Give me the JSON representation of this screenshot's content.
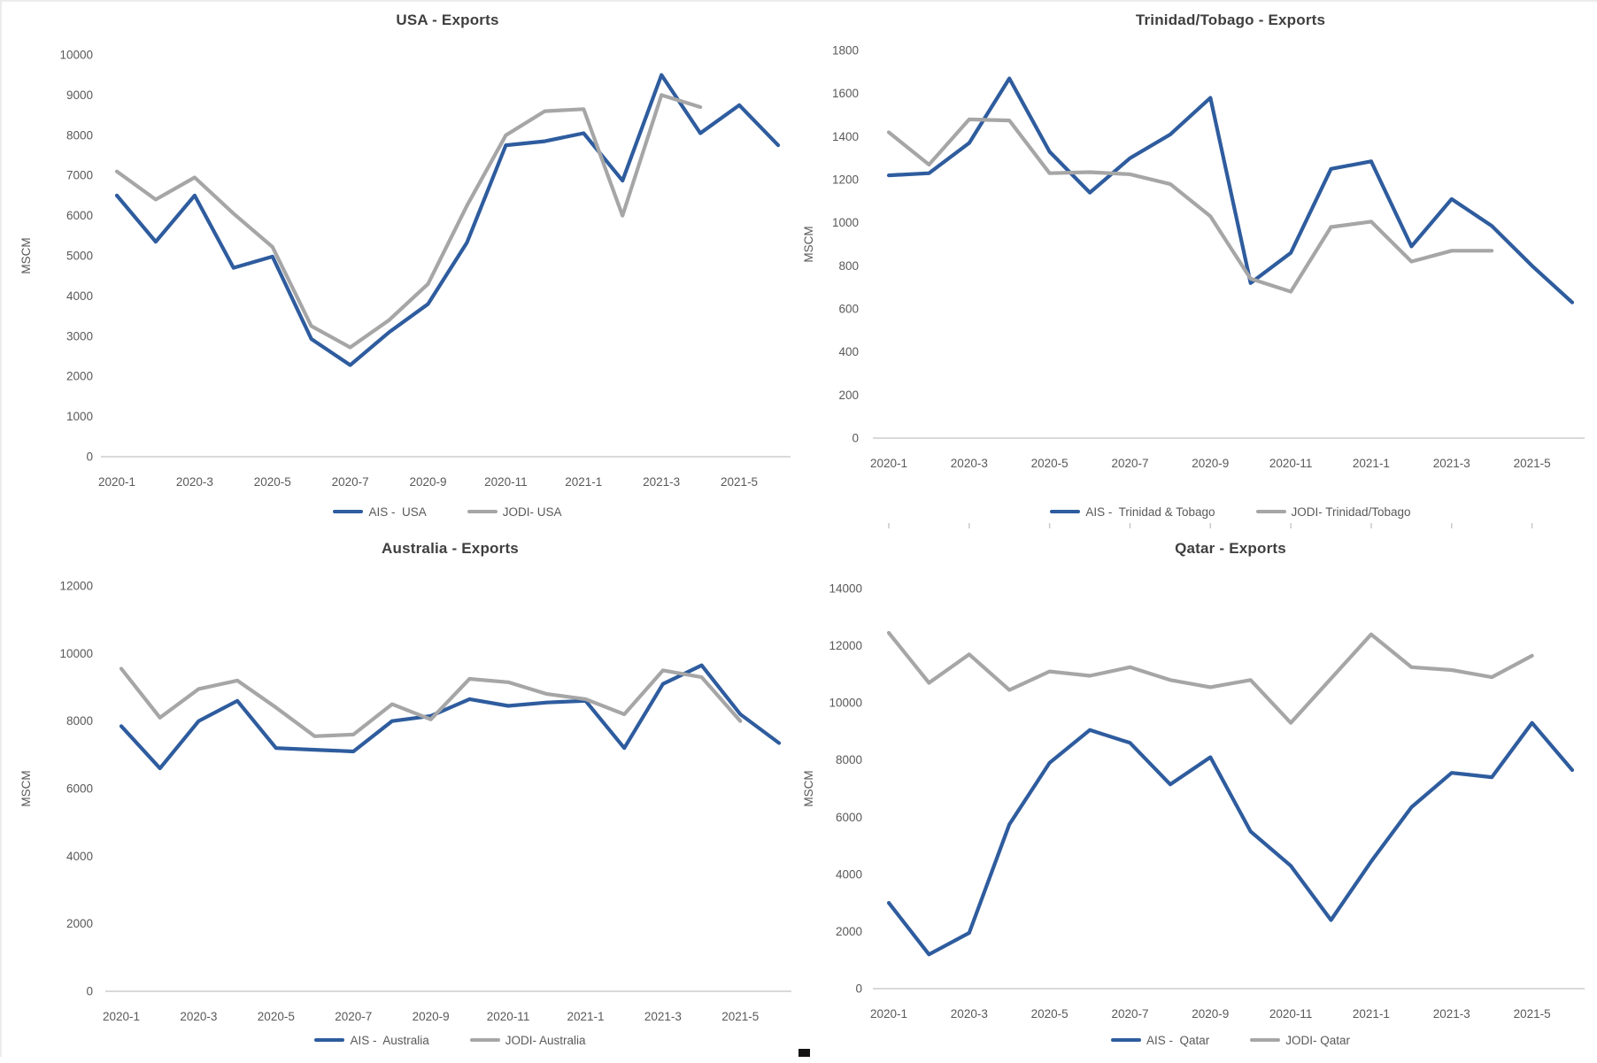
{
  "colors": {
    "ais_blue": "#2E5C9E",
    "jodi_gray": "#A6A6A6",
    "title": "#3f3f3f",
    "axis_text": "#595959",
    "axis_line": "#D9D9D9",
    "tick_mark": "#c9c9c9"
  },
  "x_categories": [
    "2020-1",
    "2020-2",
    "2020-3",
    "2020-4",
    "2020-5",
    "2020-6",
    "2020-7",
    "2020-8",
    "2020-9",
    "2020-10",
    "2020-11",
    "2020-12",
    "2021-1",
    "2021-2",
    "2021-3",
    "2021-4",
    "2021-5",
    "2021-6"
  ],
  "x_tick_labels": [
    "2020-1",
    "2020-3",
    "2020-5",
    "2020-7",
    "2020-9",
    "2020-11",
    "2021-1",
    "2021-3",
    "2021-5"
  ],
  "chart_data": [
    {
      "id": "usa",
      "type": "line",
      "title": "USA - Exports",
      "ylabel": "MSCM",
      "xlabel": "",
      "ylim": [
        0,
        10000
      ],
      "y_step": 1000,
      "grid": false,
      "legend_position": "bottom",
      "x": [
        "2020-1",
        "2020-2",
        "2020-3",
        "2020-4",
        "2020-5",
        "2020-6",
        "2020-7",
        "2020-8",
        "2020-9",
        "2020-10",
        "2020-11",
        "2020-12",
        "2021-1",
        "2021-2",
        "2021-3",
        "2021-4",
        "2021-5",
        "2021-6"
      ],
      "series": [
        {
          "name": "AIS -  USA",
          "color_key": "ais_blue",
          "values": [
            6500,
            5350,
            6500,
            4700,
            4980,
            2930,
            2280,
            3100,
            3800,
            5330,
            7750,
            7850,
            8050,
            6870,
            9500,
            8050,
            8750,
            7750
          ]
        },
        {
          "name": "JODI- USA",
          "color_key": "jodi_gray",
          "values": [
            7100,
            6400,
            6950,
            6050,
            5220,
            3250,
            2720,
            3400,
            4300,
            6250,
            8000,
            8600,
            8650,
            6000,
            9000,
            8700
          ]
        }
      ]
    },
    {
      "id": "trinidad-tobago",
      "type": "line",
      "title": "Trinidad/Tobago - Exports",
      "ylabel": "MSCM",
      "xlabel": "",
      "ylim": [
        0,
        1800
      ],
      "y_step": 200,
      "grid": false,
      "legend_position": "bottom",
      "x": [
        "2020-1",
        "2020-2",
        "2020-3",
        "2020-4",
        "2020-5",
        "2020-6",
        "2020-7",
        "2020-8",
        "2020-9",
        "2020-10",
        "2020-11",
        "2020-12",
        "2021-1",
        "2021-2",
        "2021-3",
        "2021-4",
        "2021-5",
        "2021-6"
      ],
      "series": [
        {
          "name": "AIS -  Trinidad & Tobago",
          "color_key": "ais_blue",
          "values": [
            1220,
            1230,
            1370,
            1670,
            1330,
            1140,
            1300,
            1410,
            1580,
            720,
            860,
            1250,
            1285,
            890,
            1110,
            985,
            800,
            630
          ]
        },
        {
          "name": "JODI- Trinidad/Tobago",
          "color_key": "jodi_gray",
          "values": [
            1420,
            1270,
            1480,
            1475,
            1230,
            1235,
            1225,
            1180,
            1030,
            740,
            680,
            980,
            1005,
            820,
            870,
            870
          ]
        }
      ]
    },
    {
      "id": "australia",
      "type": "line",
      "title": "Australia - Exports",
      "ylabel": "MSCM",
      "xlabel": "",
      "ylim": [
        0,
        12000
      ],
      "y_step": 2000,
      "grid": false,
      "legend_position": "bottom",
      "x": [
        "2020-1",
        "2020-2",
        "2020-3",
        "2020-4",
        "2020-5",
        "2020-6",
        "2020-7",
        "2020-8",
        "2020-9",
        "2020-10",
        "2020-11",
        "2020-12",
        "2021-1",
        "2021-2",
        "2021-3",
        "2021-4",
        "2021-5",
        "2021-6"
      ],
      "series": [
        {
          "name": "AIS -  Australia",
          "color_key": "ais_blue",
          "values": [
            7850,
            6600,
            8000,
            8600,
            7200,
            7150,
            7100,
            8000,
            8150,
            8650,
            8450,
            8550,
            8600,
            7200,
            9100,
            9650,
            8200,
            7350
          ]
        },
        {
          "name": "JODI- Australia",
          "color_key": "jodi_gray",
          "values": [
            9550,
            8100,
            8950,
            9200,
            8400,
            7550,
            7600,
            8500,
            8050,
            9250,
            9150,
            8800,
            8650,
            8200,
            9500,
            9300,
            8000
          ]
        }
      ]
    },
    {
      "id": "qatar",
      "type": "line",
      "title": "Qatar - Exports",
      "ylabel": "MSCM",
      "xlabel": "",
      "ylim": [
        0,
        14000
      ],
      "y_step": 2000,
      "grid": false,
      "legend_position": "bottom",
      "x": [
        "2020-1",
        "2020-2",
        "2020-3",
        "2020-4",
        "2020-5",
        "2020-6",
        "2020-7",
        "2020-8",
        "2020-9",
        "2020-10",
        "2020-11",
        "2020-12",
        "2021-1",
        "2021-2",
        "2021-3",
        "2021-4",
        "2021-5",
        "2021-6"
      ],
      "series": [
        {
          "name": "AIS -  Qatar",
          "color_key": "ais_blue",
          "values": [
            3000,
            1200,
            1950,
            5750,
            7900,
            9050,
            8600,
            7150,
            8100,
            5500,
            4300,
            2400,
            4450,
            6350,
            7550,
            7400,
            9300,
            7650
          ]
        },
        {
          "name": "JODI- Qatar",
          "color_key": "jodi_gray",
          "values": [
            12450,
            10700,
            11700,
            10450,
            11100,
            10950,
            11250,
            10800,
            10550,
            10800,
            9300,
            10850,
            12400,
            11250,
            11150,
            10900,
            11650
          ]
        }
      ]
    }
  ]
}
